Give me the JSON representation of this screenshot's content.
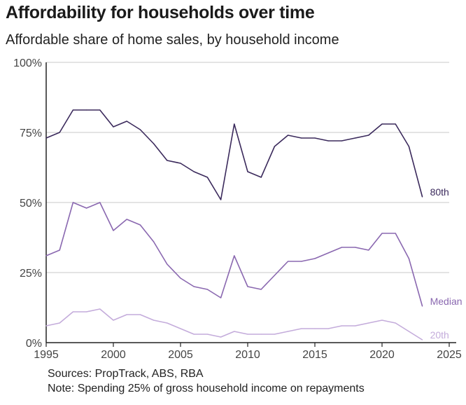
{
  "title": "Affordability for households over time",
  "subtitle": "Affordable share of home sales, by household income",
  "sources": "Sources: PropTrack, ABS, RBA",
  "note": "Note: Spending 25% of gross household income on repayments",
  "chart_data": {
    "type": "line",
    "title": "Affordability for households over time",
    "subtitle": "Affordable share of home sales, by household income",
    "xlabel": "",
    "ylabel": "",
    "xlim": [
      1995,
      2025
    ],
    "ylim": [
      0,
      100
    ],
    "x_ticks": [
      "1995",
      "2000",
      "2005",
      "2010",
      "2015",
      "2020",
      "2025"
    ],
    "y_ticks": [
      "0%",
      "25%",
      "50%",
      "75%",
      "100%"
    ],
    "grid": "horizontal",
    "x": [
      1995,
      1996,
      1997,
      1998,
      1999,
      2000,
      2001,
      2002,
      2003,
      2004,
      2005,
      2006,
      2007,
      2008,
      2009,
      2010,
      2011,
      2012,
      2013,
      2014,
      2015,
      2016,
      2017,
      2018,
      2019,
      2020,
      2021,
      2022,
      2023
    ],
    "series": [
      {
        "name": "80th",
        "color": "#3b2a5c",
        "values": [
          73,
          75,
          83,
          83,
          83,
          77,
          79,
          76,
          71,
          65,
          64,
          61,
          59,
          51,
          78,
          61,
          59,
          70,
          74,
          73,
          73,
          72,
          72,
          73,
          74,
          78,
          78,
          70,
          52
        ]
      },
      {
        "name": "Median",
        "color": "#8a68b0",
        "values": [
          31,
          33,
          50,
          48,
          50,
          40,
          44,
          42,
          36,
          28,
          23,
          20,
          19,
          16,
          31,
          20,
          19,
          24,
          29,
          29,
          30,
          32,
          34,
          34,
          33,
          39,
          39,
          30,
          13
        ]
      },
      {
        "name": "20th",
        "color": "#c4acdb",
        "values": [
          6,
          7,
          11,
          11,
          12,
          8,
          10,
          10,
          8,
          7,
          5,
          3,
          3,
          2,
          4,
          3,
          3,
          3,
          4,
          5,
          5,
          5,
          6,
          6,
          7,
          8,
          7,
          4,
          1
        ]
      }
    ]
  }
}
